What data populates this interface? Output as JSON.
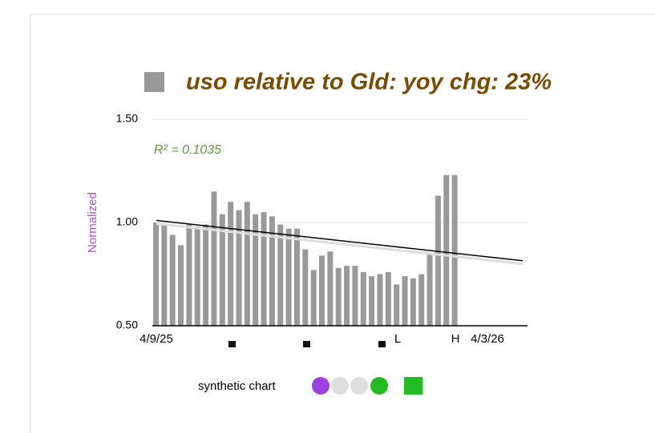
{
  "chart_data": {
    "type": "bar",
    "title": "uso relative to Gld:  yoy chg: 23%",
    "ylabel": "Normalized",
    "annotation": "R² = 0.1035",
    "x_start_label": "4/9/25",
    "x_end_label": "4/3/26",
    "low_label": "L",
    "high_label": "H",
    "legend_label": "synthetic chart",
    "values": [
      1.0,
      0.99,
      0.94,
      0.89,
      0.99,
      0.98,
      0.99,
      1.15,
      1.04,
      1.1,
      1.06,
      1.1,
      1.04,
      1.05,
      1.03,
      0.99,
      0.97,
      0.97,
      0.87,
      0.77,
      0.84,
      0.86,
      0.78,
      0.79,
      0.79,
      0.76,
      0.74,
      0.75,
      0.76,
      0.7,
      0.74,
      0.73,
      0.75,
      0.85,
      1.13,
      1.23,
      1.23
    ],
    "color": "#999999",
    "trendline": {
      "start": 1.01,
      "end": 0.815,
      "color": "#000000"
    },
    "ylim": [
      0.5,
      1.5
    ],
    "yticks": [
      {
        "value": 0.5,
        "label": "0.50"
      },
      {
        "value": 1.0,
        "label": "1.00"
      },
      {
        "value": 1.5,
        "label": "1.50"
      }
    ],
    "grid": true
  }
}
